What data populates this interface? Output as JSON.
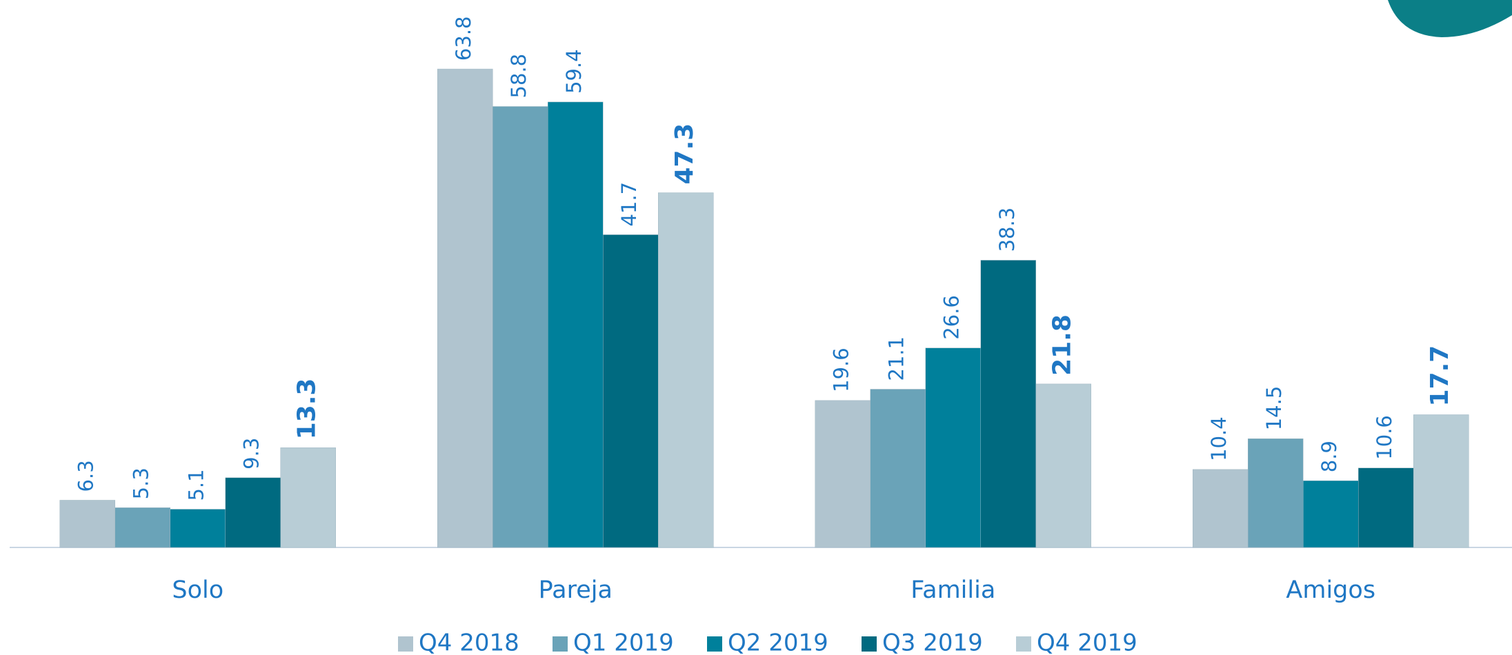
{
  "chart_data": {
    "type": "bar",
    "categories": [
      "Solo",
      "Pareja",
      "Familia",
      "Amigos"
    ],
    "series": [
      {
        "name": "Q4 2018",
        "color": "#b0c4cf",
        "values": [
          6.3,
          63.8,
          19.6,
          10.4
        ]
      },
      {
        "name": "Q1 2019",
        "color": "#6aa3b8",
        "values": [
          5.3,
          58.8,
          21.1,
          14.5
        ]
      },
      {
        "name": "Q2 2019",
        "color": "#00809b",
        "values": [
          5.1,
          59.4,
          26.6,
          8.9
        ]
      },
      {
        "name": "Q3 2019",
        "color": "#006a80",
        "values": [
          9.3,
          41.7,
          38.3,
          10.6
        ]
      },
      {
        "name": "Q4 2019",
        "color": "#b8cdd6",
        "values": [
          13.3,
          47.3,
          21.8,
          17.7
        ]
      }
    ],
    "ylim": [
      0,
      73
    ],
    "legend": "bottom"
  }
}
